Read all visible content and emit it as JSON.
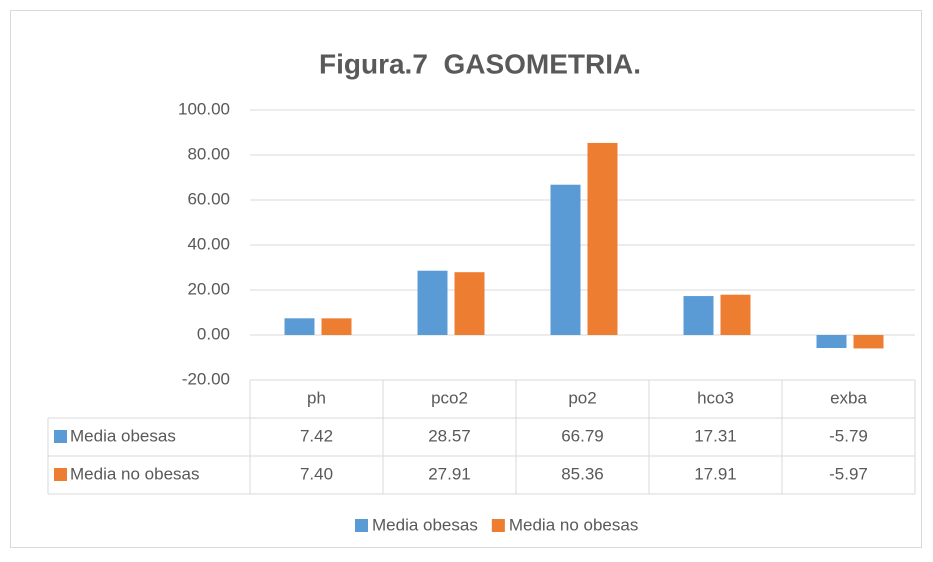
{
  "chart_data": {
    "type": "bar",
    "title": "Figura.7  GASOMETRIA.",
    "categories": [
      "ph",
      "pco2",
      "po2",
      "hco3",
      "exba"
    ],
    "series": [
      {
        "name": "Media obesas",
        "color": "#5b9bd5",
        "values": [
          7.42,
          28.57,
          66.79,
          17.31,
          -5.79
        ],
        "value_labels": [
          "7.42",
          "28.57",
          "66.79",
          "17.31",
          "-5.79"
        ]
      },
      {
        "name": "Media no obesas",
        "color": "#ed7d31",
        "values": [
          7.4,
          27.91,
          85.36,
          17.91,
          -5.97
        ],
        "value_labels": [
          "7.40",
          "27.91",
          "85.36",
          "17.91",
          "-5.97"
        ]
      }
    ],
    "ylim": [
      -20,
      100
    ],
    "yticks": [
      {
        "value": -20,
        "label": "-20.00"
      },
      {
        "value": 0,
        "label": "0.00"
      },
      {
        "value": 20,
        "label": "20.00"
      },
      {
        "value": 40,
        "label": "40.00"
      },
      {
        "value": 60,
        "label": "60.00"
      },
      {
        "value": 80,
        "label": "80.00"
      },
      {
        "value": 100,
        "label": "100.00"
      }
    ],
    "grid": true,
    "legend": "bottom",
    "data_table": true
  }
}
